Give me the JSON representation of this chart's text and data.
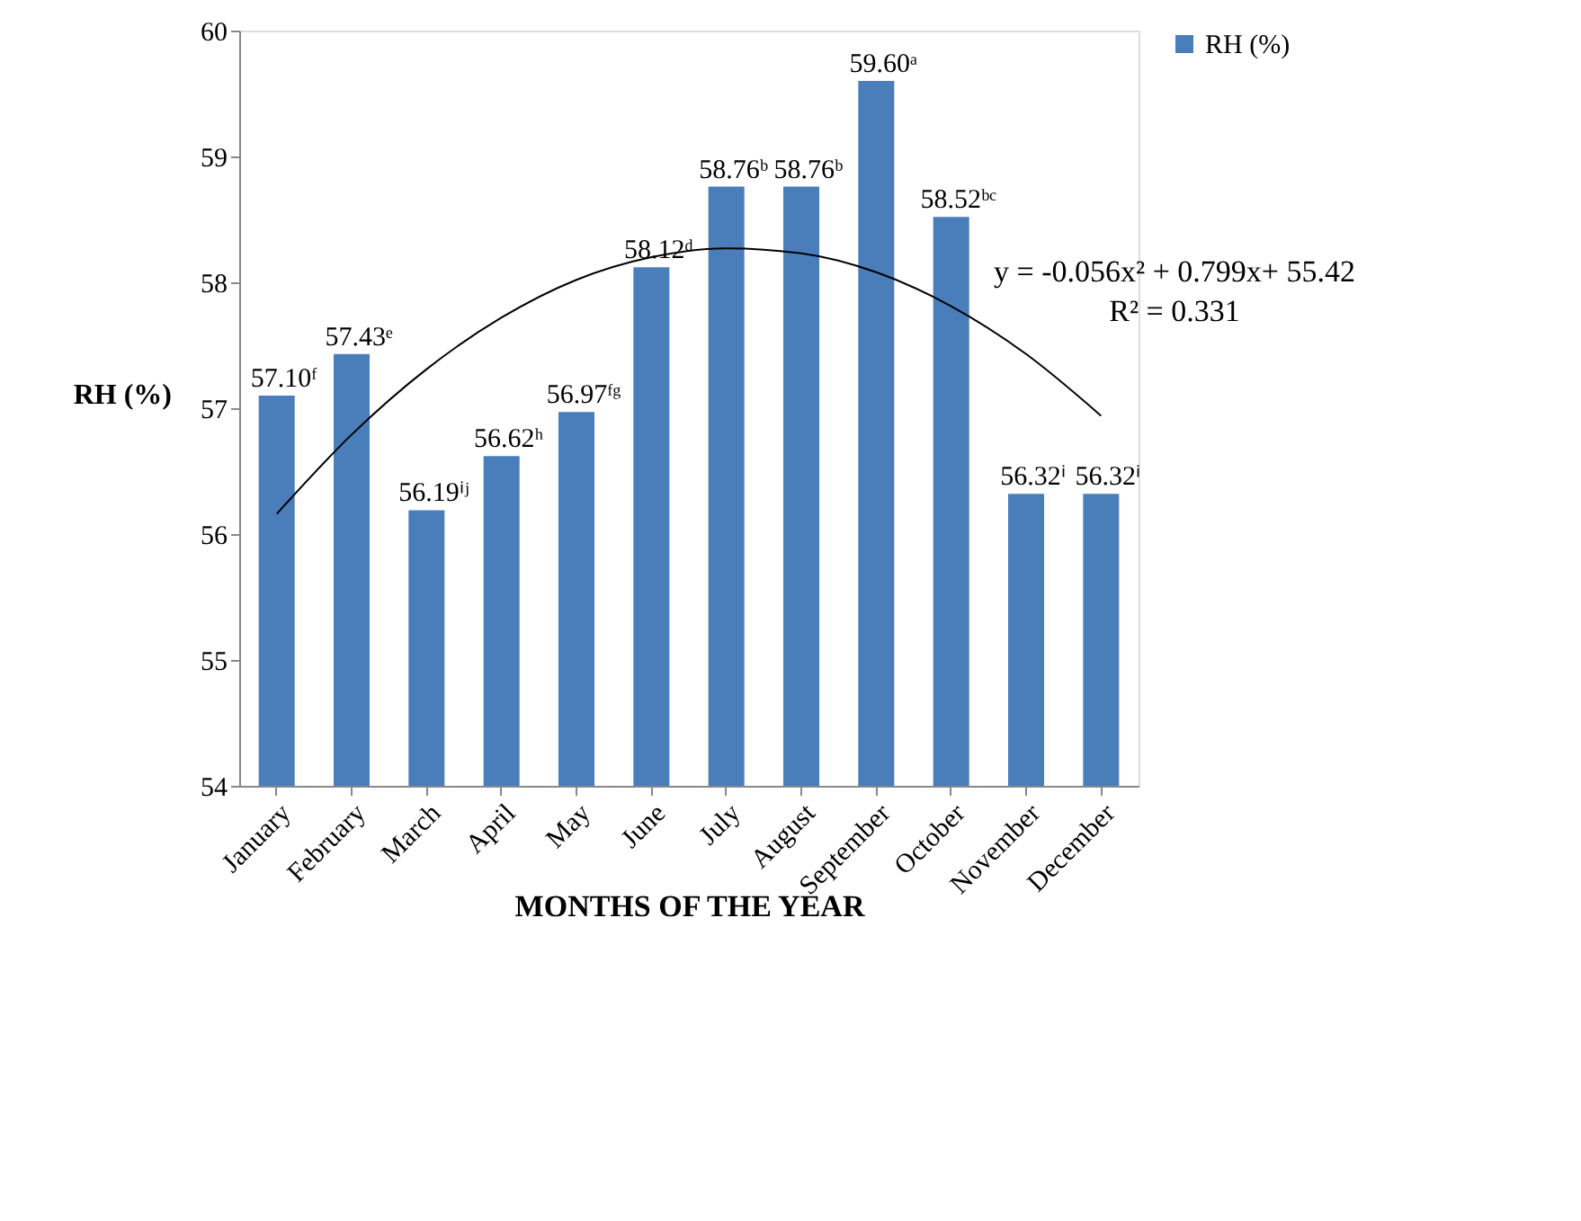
{
  "chart_data": {
    "type": "bar",
    "xlabel": "MONTHS OF THE YEAR",
    "ylabel": "RH (%)",
    "categories": [
      "January",
      "February",
      "March",
      "April",
      "May",
      "June",
      "July",
      "August",
      "September",
      "October",
      "November",
      "December"
    ],
    "series": [
      {
        "name": "RH (%)",
        "color": "#4a7ebb",
        "values": [
          57.1,
          57.43,
          56.19,
          56.62,
          56.97,
          58.12,
          58.76,
          58.76,
          59.6,
          58.52,
          56.32,
          56.32
        ],
        "value_labels": [
          "57.10ᶠ",
          "57.43ᵉ",
          "56.19ⁱʲ",
          "56.62ʰ",
          "56.97ᶠᵍ",
          "58.12ᵈ",
          "58.76ᵇ",
          "58.76ᵇ",
          "59.60ᵃ",
          "58.52ᵇᶜ",
          "56.32ⁱ",
          "56.32ⁱ"
        ]
      },
      {
        "type": "line",
        "color": "#000000",
        "x": [
          "January",
          "February",
          "March",
          "April",
          "May",
          "June",
          "July",
          "August",
          "September",
          "October",
          "November",
          "December"
        ],
        "values": [
          56.16,
          56.79,
          57.31,
          57.72,
          58.02,
          58.2,
          58.27,
          58.23,
          58.08,
          57.81,
          57.43,
          56.94
        ]
      }
    ],
    "ylim": [
      54,
      60
    ],
    "yticks": [
      54,
      55,
      56,
      57,
      58,
      59,
      60
    ],
    "grid": false,
    "legend": "right",
    "annotations": [
      "y = -0.056x² + 0.799x+ 55.42",
      "R² = 0.331"
    ]
  }
}
